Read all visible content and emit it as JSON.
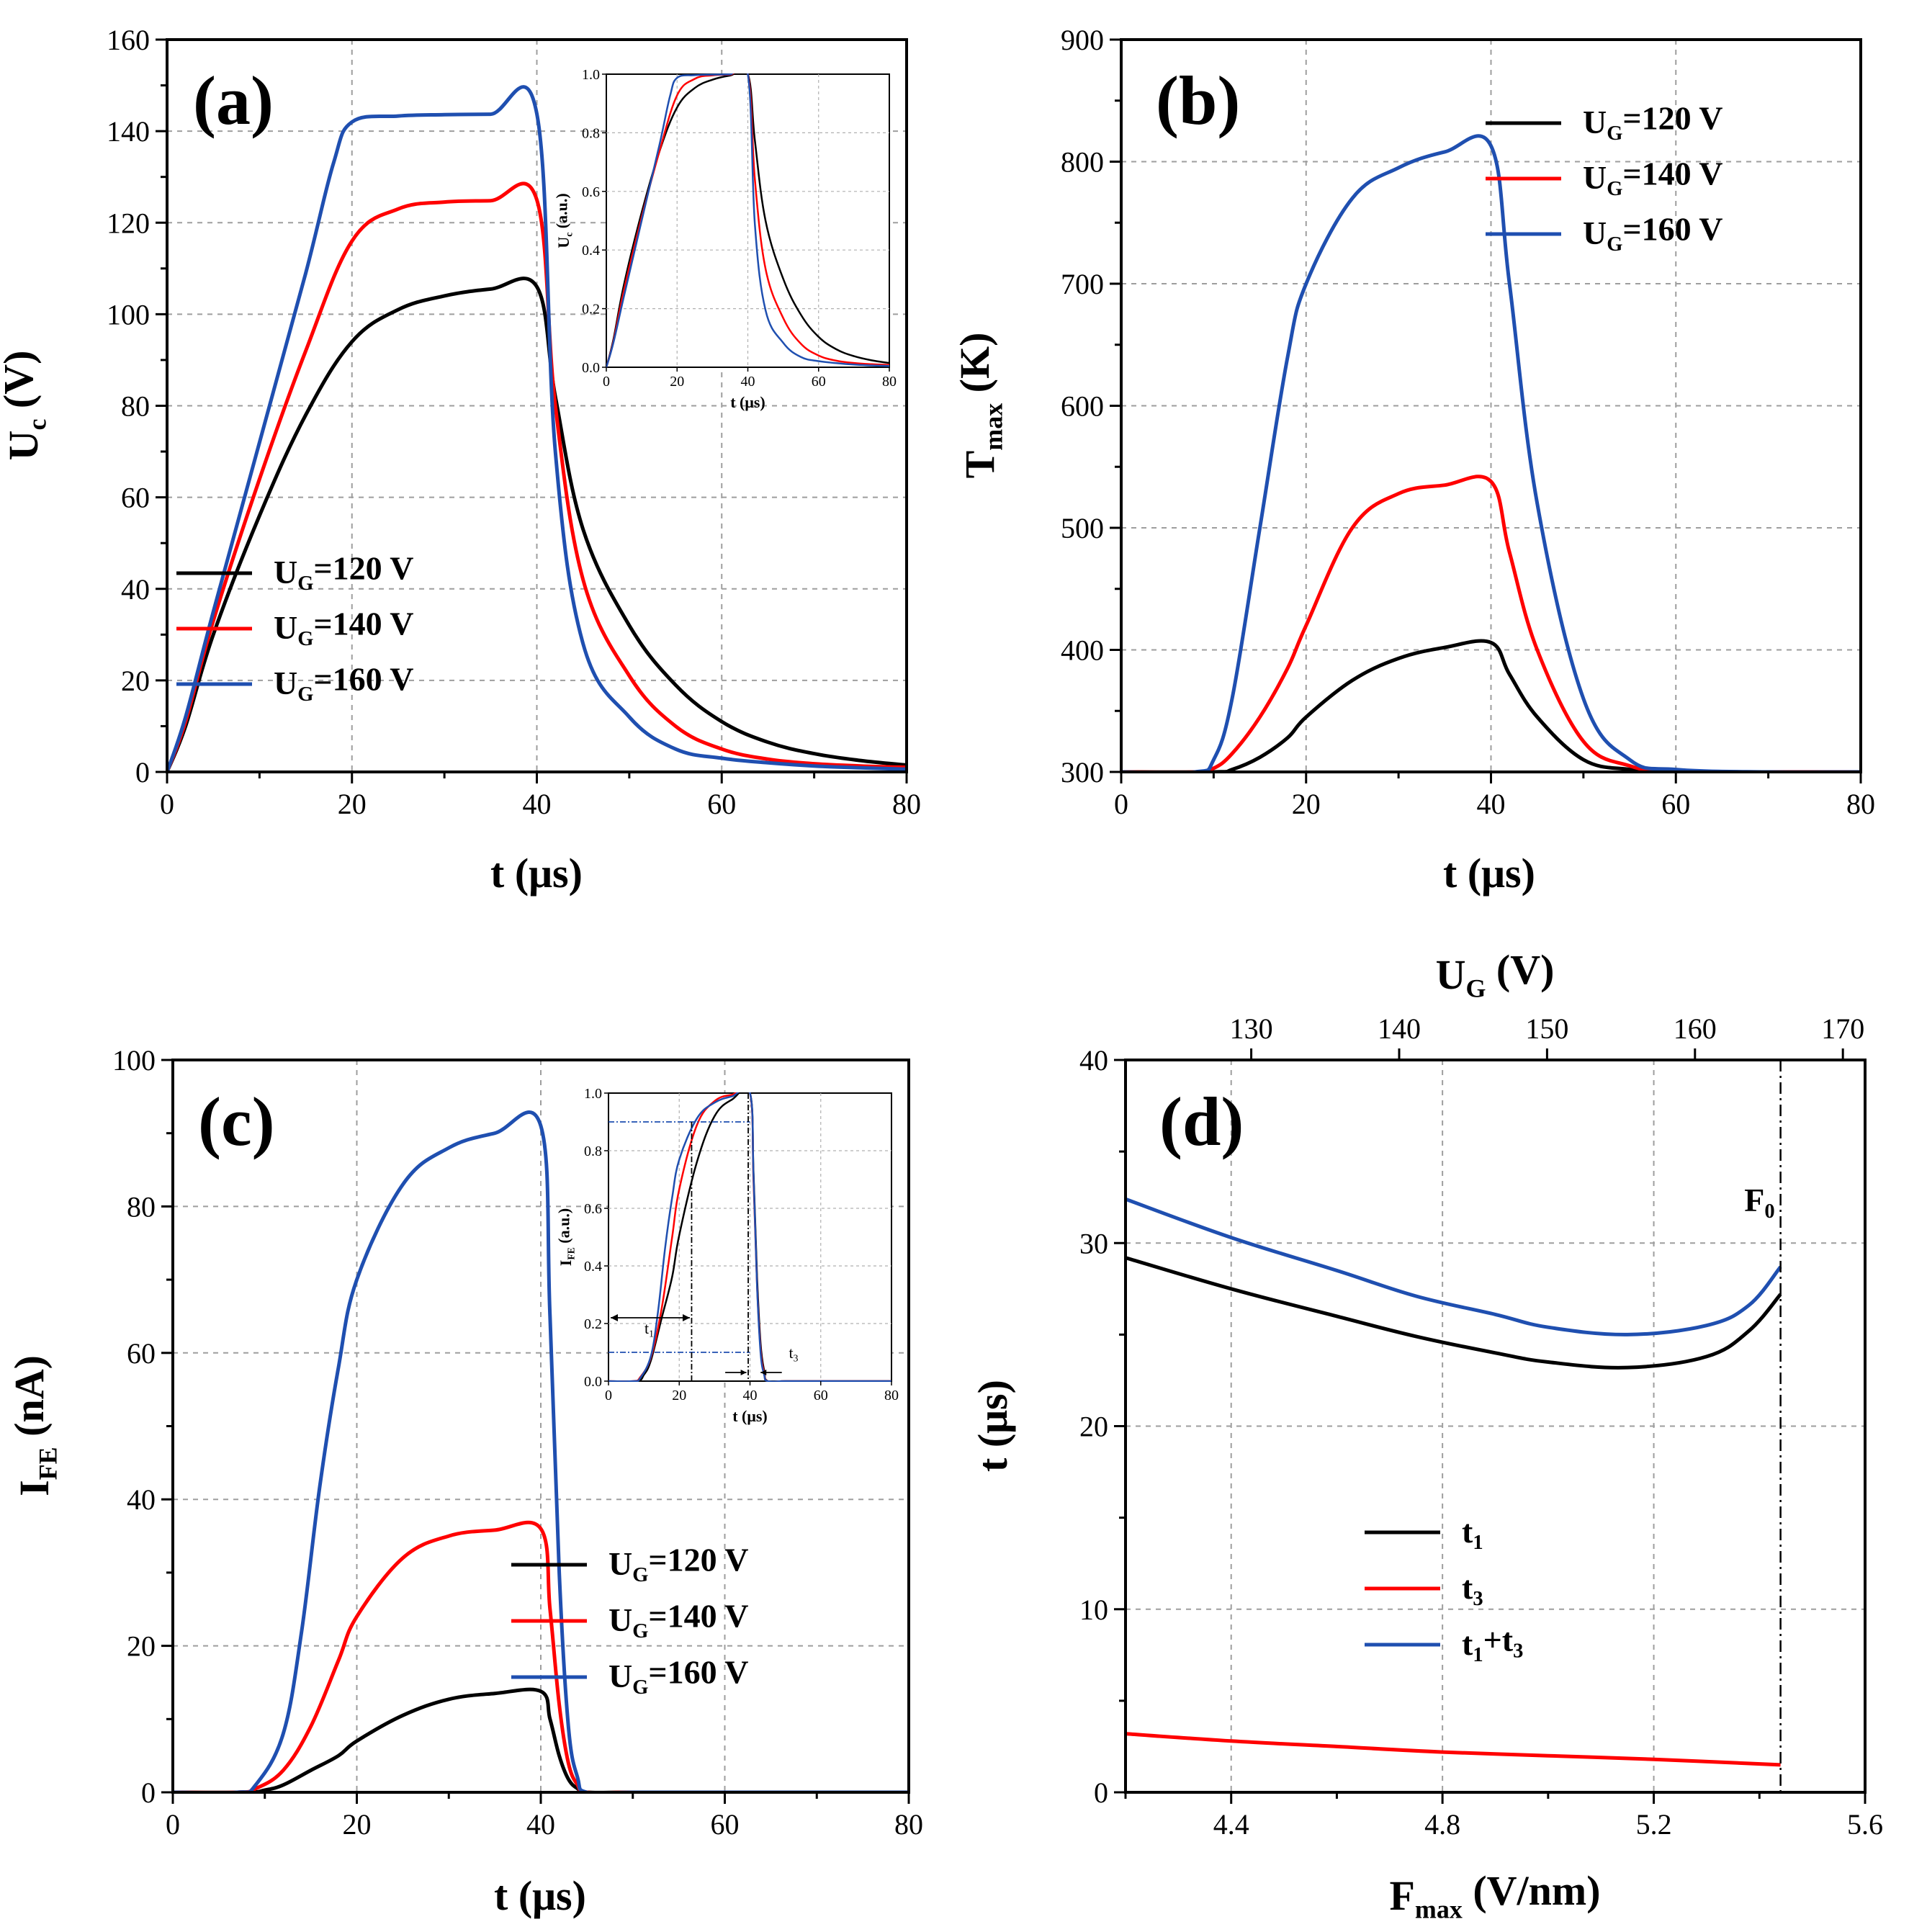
{
  "chart_data": [
    {
      "type": "line",
      "panel_label": "(a)",
      "xlabel": "t (μs)",
      "ylabel": {
        "main": "U",
        "sub": "c",
        "rest": " (V)"
      },
      "xlim": [
        0,
        80
      ],
      "ylim": [
        0,
        160
      ],
      "xticks": [
        "0",
        "20",
        "40",
        "60",
        "80"
      ],
      "yticks": [
        "0",
        "20",
        "40",
        "60",
        "80",
        "100",
        "120",
        "140",
        "160"
      ],
      "legend_position": "center-left",
      "series": [
        {
          "name": "UG=120 V",
          "legend": {
            "main": "U",
            "sub": "G",
            "rest": "=120 V"
          },
          "color": "#000000",
          "x": [
            0,
            2,
            5,
            10,
            15,
            20,
            25,
            30,
            35,
            40,
            42,
            45,
            50,
            55,
            60,
            65,
            70,
            75,
            80
          ],
          "y": [
            0,
            10,
            30,
            56,
            78,
            94,
            101,
            104,
            105.5,
            106,
            82,
            53,
            32,
            19,
            11,
            6.5,
            4,
            2.5,
            1.5
          ]
        },
        {
          "name": "UG=140 V",
          "legend": {
            "main": "U",
            "sub": "G",
            "rest": "=140 V"
          },
          "color": "#ff0000",
          "x": [
            0,
            2,
            5,
            10,
            15,
            20,
            25,
            30,
            35,
            40,
            42,
            45,
            50,
            55,
            60,
            65,
            70,
            75,
            80
          ],
          "y": [
            0,
            11,
            33,
            64,
            92,
            116,
            123,
            124.5,
            124.8,
            125,
            80,
            42,
            21,
            10,
            5,
            2.8,
            1.8,
            1.3,
            1
          ]
        },
        {
          "name": "UG=160 V",
          "legend": {
            "main": "U",
            "sub": "G",
            "rest": "=160 V"
          },
          "color": "#1f4fb0",
          "x": [
            0,
            2,
            5,
            10,
            15,
            18,
            20,
            25,
            30,
            35,
            40,
            42,
            45,
            50,
            55,
            60,
            65,
            70,
            75,
            80
          ],
          "y": [
            0,
            12,
            35,
            72,
            109,
            133,
            142,
            143.3,
            143.6,
            143.7,
            143.8,
            70,
            28,
            12,
            5,
            3,
            2,
            1.3,
            0.9,
            0.6
          ]
        }
      ],
      "inset": {
        "xlabel": "t (μs)",
        "ylabel": {
          "main": "U",
          "sub": "c",
          "rest": " (a.u.)"
        },
        "xlim": [
          0,
          80
        ],
        "ylim": [
          0,
          1
        ],
        "xticks": [
          "0",
          "20",
          "40",
          "60",
          "80"
        ],
        "yticks": [
          "0.0",
          "0.2",
          "0.4",
          "0.6",
          "0.8",
          "1.0"
        ]
      }
    },
    {
      "type": "line",
      "panel_label": "(b)",
      "xlabel": "t (μs)",
      "ylabel": {
        "main": "T",
        "sub": "max",
        "rest": " (K)"
      },
      "xlim": [
        0,
        80
      ],
      "ylim": [
        300,
        900
      ],
      "xticks": [
        "0",
        "20",
        "40",
        "60",
        "80"
      ],
      "yticks": [
        "300",
        "400",
        "500",
        "600",
        "700",
        "800",
        "900"
      ],
      "legend_position": "top-right",
      "series": [
        {
          "name": "UG=120 V",
          "legend": {
            "main": "U",
            "sub": "G",
            "rest": "=120 V"
          },
          "color": "#000000",
          "x": [
            0,
            10,
            12,
            15,
            18,
            20,
            25,
            30,
            35,
            40,
            42,
            45,
            50,
            55,
            60,
            70,
            80
          ],
          "y": [
            300,
            300,
            302,
            312,
            328,
            345,
            375,
            393,
            402,
            406,
            380,
            345,
            310,
            302,
            300,
            300,
            300
          ]
        },
        {
          "name": "UG=140 V",
          "legend": {
            "main": "U",
            "sub": "G",
            "rest": "=140 V"
          },
          "color": "#ff0000",
          "x": [
            0,
            8,
            10,
            12,
            15,
            18,
            20,
            25,
            30,
            35,
            40,
            42,
            45,
            50,
            55,
            60,
            70,
            80
          ],
          "y": [
            300,
            300,
            303,
            315,
            345,
            385,
            420,
            500,
            528,
            535,
            538,
            480,
            400,
            325,
            305,
            300,
            300,
            300
          ]
        },
        {
          "name": "UG=160 V",
          "legend": {
            "main": "U",
            "sub": "G",
            "rest": "=160 V"
          },
          "color": "#1f4fb0",
          "x": [
            0,
            8,
            10,
            12,
            15,
            18,
            20,
            25,
            30,
            35,
            40,
            42,
            45,
            50,
            55,
            60,
            70,
            80
          ],
          "y": [
            300,
            300,
            310,
            360,
            500,
            640,
            700,
            770,
            795,
            808,
            813,
            700,
            520,
            360,
            310,
            302,
            300,
            300
          ]
        }
      ]
    },
    {
      "type": "line",
      "panel_label": "(c)",
      "xlabel": "t (μs)",
      "ylabel": {
        "main": "I",
        "sub": "FE",
        "rest": " (nA)"
      },
      "xlim": [
        0,
        80
      ],
      "ylim": [
        0,
        100
      ],
      "xticks": [
        "0",
        "20",
        "40",
        "60",
        "80"
      ],
      "yticks": [
        "0",
        "20",
        "40",
        "60",
        "80",
        "100"
      ],
      "legend_position": "lower-right",
      "series": [
        {
          "name": "UG=120 V",
          "legend": {
            "main": "U",
            "sub": "G",
            "rest": "=120 V"
          },
          "color": "#000000",
          "x": [
            0,
            8,
            10,
            12,
            15,
            18,
            20,
            25,
            30,
            35,
            40,
            41,
            42,
            43,
            44,
            45,
            50,
            60,
            80
          ],
          "y": [
            0,
            0,
            0.3,
            1,
            3,
            5,
            7,
            10.5,
            12.7,
            13.5,
            13.8,
            10,
            5,
            1.8,
            0.5,
            0,
            0,
            0,
            0
          ]
        },
        {
          "name": "UG=140 V",
          "legend": {
            "main": "U",
            "sub": "G",
            "rest": "=140 V"
          },
          "color": "#ff0000",
          "x": [
            0,
            7,
            9,
            12,
            15,
            18,
            20,
            25,
            30,
            35,
            40,
            41,
            42,
            43,
            44,
            45,
            50,
            60,
            80
          ],
          "y": [
            0,
            0,
            0.5,
            3,
            9,
            18,
            24,
            32,
            35,
            35.8,
            36,
            25,
            12,
            4,
            1,
            0,
            0,
            0,
            0
          ]
        },
        {
          "name": "UG=160 V",
          "legend": {
            "main": "U",
            "sub": "G",
            "rest": "=160 V"
          },
          "color": "#1f4fb0",
          "x": [
            0,
            7,
            9,
            12,
            14,
            16,
            18,
            20,
            25,
            30,
            35,
            40,
            41,
            42,
            43,
            44,
            45,
            50,
            60,
            80
          ],
          "y": [
            0,
            0,
            1,
            8,
            22,
            42,
            58,
            70,
            83,
            88,
            90,
            91,
            65,
            30,
            9,
            2,
            0,
            0,
            0,
            0
          ]
        }
      ],
      "inset": {
        "xlabel": "t (μs)",
        "ylabel": {
          "main": "I",
          "sub": "FE",
          "rest": " (a.u.)"
        },
        "xlim": [
          0,
          80
        ],
        "ylim": [
          0,
          1
        ],
        "xticks": [
          "0",
          "20",
          "40",
          "60",
          "80"
        ],
        "yticks": [
          "0.0",
          "0.2",
          "0.4",
          "0.6",
          "0.8",
          "1.0"
        ],
        "annotations": [
          {
            "main": "t",
            "sub": "1"
          },
          {
            "main": "t",
            "sub": "3"
          }
        ]
      }
    },
    {
      "type": "line",
      "panel_label": "(d)",
      "xlabel": {
        "main": "F",
        "sub": "max",
        "rest": " (V/nm)"
      },
      "ylabel": "t (μs)",
      "top_xlabel": {
        "main": "U",
        "sub": "G",
        "rest": " (V)"
      },
      "xlim": [
        4.2,
        5.6
      ],
      "ylim": [
        0,
        40
      ],
      "top_xlim": [
        121.5,
        171.5
      ],
      "xticks": [
        "4.4",
        "4.8",
        "5.2",
        "5.6"
      ],
      "xtick_values": [
        4.4,
        4.8,
        5.2,
        5.6
      ],
      "top_xticks": [
        "130",
        "140",
        "150",
        "160",
        "170"
      ],
      "top_xtick_values": [
        130,
        140,
        150,
        160,
        170
      ],
      "yticks": [
        "0",
        "10",
        "20",
        "30",
        "40"
      ],
      "vline": {
        "x": 5.44,
        "label": {
          "main": "F",
          "sub": "0"
        }
      },
      "legend_position": "lower-center",
      "series": [
        {
          "name": "t1",
          "legend": {
            "main": "t",
            "sub": "1",
            "rest": ""
          },
          "color": "#000000",
          "x": [
            4.2,
            4.4,
            4.6,
            4.75,
            4.9,
            5.0,
            5.15,
            5.3,
            5.38,
            5.44
          ],
          "y": [
            29.2,
            27.5,
            26.0,
            24.9,
            24.0,
            23.5,
            23.2,
            23.8,
            25.2,
            27.2
          ]
        },
        {
          "name": "t3",
          "legend": {
            "main": "t",
            "sub": "3",
            "rest": ""
          },
          "color": "#ff0000",
          "x": [
            4.2,
            4.4,
            4.6,
            4.8,
            5.0,
            5.2,
            5.44
          ],
          "y": [
            3.2,
            2.8,
            2.5,
            2.2,
            2.0,
            1.8,
            1.5
          ]
        },
        {
          "name": "t1+t3",
          "legend": {
            "main": "t",
            "sub": "1",
            "rest": "+t",
            "sub2": "3"
          },
          "color": "#1f4fb0",
          "x": [
            4.2,
            4.4,
            4.6,
            4.75,
            4.9,
            5.0,
            5.15,
            5.3,
            5.38,
            5.44
          ],
          "y": [
            32.4,
            30.3,
            28.5,
            27.1,
            26.1,
            25.4,
            25.0,
            25.5,
            26.6,
            28.7
          ]
        }
      ]
    }
  ]
}
